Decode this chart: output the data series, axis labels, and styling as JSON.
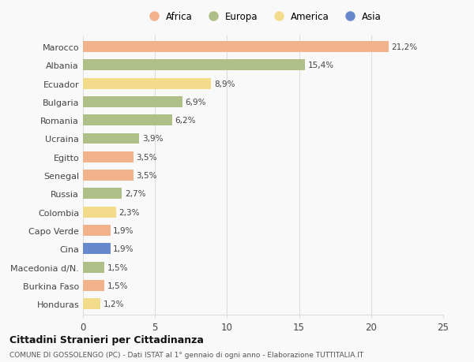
{
  "categories": [
    "Marocco",
    "Albania",
    "Ecuador",
    "Bulgaria",
    "Romania",
    "Ucraina",
    "Egitto",
    "Senegal",
    "Russia",
    "Colombia",
    "Capo Verde",
    "Cina",
    "Macedonia d/N.",
    "Burkina Faso",
    "Honduras"
  ],
  "values": [
    21.2,
    15.4,
    8.9,
    6.9,
    6.2,
    3.9,
    3.5,
    3.5,
    2.7,
    2.3,
    1.9,
    1.9,
    1.5,
    1.5,
    1.2
  ],
  "labels": [
    "21,2%",
    "15,4%",
    "8,9%",
    "6,9%",
    "6,2%",
    "3,9%",
    "3,5%",
    "3,5%",
    "2,7%",
    "2,3%",
    "1,9%",
    "1,9%",
    "1,5%",
    "1,5%",
    "1,2%"
  ],
  "continents": [
    "Africa",
    "Europa",
    "America",
    "Europa",
    "Europa",
    "Europa",
    "Africa",
    "Africa",
    "Europa",
    "America",
    "Africa",
    "Asia",
    "Europa",
    "Africa",
    "America"
  ],
  "colors": {
    "Africa": "#F2B28C",
    "Europa": "#AEBF88",
    "America": "#F2DC8C",
    "Asia": "#6688CC"
  },
  "legend_order": [
    "Africa",
    "Europa",
    "America",
    "Asia"
  ],
  "xlim": [
    0,
    25
  ],
  "xticks": [
    0,
    5,
    10,
    15,
    20,
    25
  ],
  "title": "Cittadini Stranieri per Cittadinanza",
  "subtitle": "COMUNE DI GOSSOLENGO (PC) - Dati ISTAT al 1° gennaio di ogni anno - Elaborazione TUTTITALIA.IT",
  "background_color": "#f9f9f9",
  "bar_height": 0.6,
  "grid_color": "#dddddd"
}
